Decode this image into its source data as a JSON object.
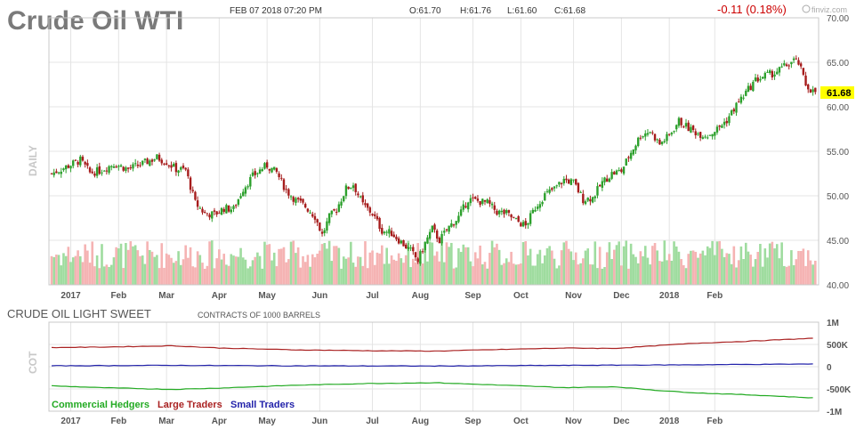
{
  "header": {
    "title": "Crude Oil WTI",
    "datetime": "FEB 07 2018 07:20 PM",
    "ohlc": {
      "open": "O:61.70",
      "high": "H:61.76",
      "low": "L:61.60",
      "close": "C:61.68"
    },
    "change": "-0.11 (0.18%)",
    "logo": "finviz.com",
    "last_price": "61.68"
  },
  "colors": {
    "up": "#2ca02c",
    "down": "#a61c1c",
    "vol_up": "#9fdc9f",
    "vol_down": "#f5b3b3",
    "change_text": "#cc0000",
    "price_tag_bg": "#ffff00",
    "commercial": "#22aa22",
    "large": "#aa2222",
    "small": "#2222aa",
    "grid": "#e4e4e4"
  },
  "chart_data": [
    {
      "type": "candlestick",
      "title": "Crude Oil WTI",
      "ylabel": "DAILY",
      "ylim": [
        40,
        70
      ],
      "yticks": [
        "70.00",
        "65.00",
        "60.00",
        "55.00",
        "50.00",
        "45.00",
        "40.00"
      ],
      "x_labels": [
        "2017",
        "Feb",
        "Mar",
        "Apr",
        "May",
        "Jun",
        "Jul",
        "Aug",
        "Sep",
        "Oct",
        "Nov",
        "Dec",
        "2018",
        "Feb"
      ],
      "grid": true,
      "anchors": [
        [
          0,
          52.5
        ],
        [
          8,
          53.5
        ],
        [
          12,
          54.0
        ],
        [
          16,
          52.6
        ],
        [
          20,
          52.8
        ],
        [
          26,
          53.6
        ],
        [
          32,
          53.0
        ],
        [
          38,
          53.6
        ],
        [
          44,
          54.3
        ],
        [
          48,
          53.8
        ],
        [
          52,
          53.0
        ],
        [
          56,
          52.9
        ],
        [
          60,
          49.2
        ],
        [
          64,
          48.0
        ],
        [
          68,
          47.9
        ],
        [
          72,
          48.6
        ],
        [
          76,
          48.5
        ],
        [
          80,
          50.8
        ],
        [
          84,
          52.2
        ],
        [
          88,
          53.1
        ],
        [
          90,
          53.4
        ],
        [
          94,
          52.6
        ],
        [
          98,
          50.6
        ],
        [
          102,
          49.5
        ],
        [
          106,
          48.8
        ],
        [
          110,
          47.7
        ],
        [
          113,
          45.6
        ],
        [
          116,
          47.6
        ],
        [
          119,
          48.5
        ],
        [
          123,
          50.8
        ],
        [
          126,
          51.3
        ],
        [
          130,
          49.0
        ],
        [
          134,
          48.0
        ],
        [
          138,
          46.1
        ],
        [
          142,
          45.8
        ],
        [
          146,
          44.8
        ],
        [
          150,
          43.8
        ],
        [
          153,
          42.7
        ],
        [
          156,
          44.7
        ],
        [
          159,
          46.3
        ],
        [
          162,
          45.0
        ],
        [
          166,
          46.5
        ],
        [
          170,
          47.6
        ],
        [
          174,
          49.6
        ],
        [
          178,
          49.4
        ],
        [
          182,
          49.2
        ],
        [
          186,
          48.2
        ],
        [
          190,
          48.0
        ],
        [
          194,
          47.2
        ],
        [
          198,
          46.6
        ],
        [
          202,
          48.7
        ],
        [
          206,
          50.1
        ],
        [
          210,
          50.8
        ],
        [
          214,
          51.8
        ],
        [
          218,
          51.5
        ],
        [
          222,
          49.6
        ],
        [
          226,
          49.8
        ],
        [
          230,
          51.5
        ],
        [
          234,
          52.5
        ],
        [
          238,
          52.8
        ],
        [
          242,
          54.9
        ],
        [
          246,
          56.8
        ],
        [
          250,
          57.3
        ],
        [
          254,
          55.8
        ],
        [
          258,
          56.8
        ],
        [
          262,
          58.4
        ],
        [
          266,
          57.6
        ],
        [
          270,
          57.0
        ],
        [
          274,
          56.8
        ],
        [
          278,
          57.5
        ],
        [
          282,
          58.5
        ],
        [
          286,
          60.2
        ],
        [
          290,
          61.6
        ],
        [
          294,
          63.0
        ],
        [
          298,
          63.5
        ],
        [
          302,
          63.8
        ],
        [
          306,
          64.5
        ],
        [
          310,
          65.2
        ],
        [
          312,
          64.9
        ],
        [
          315,
          62.5
        ],
        [
          318,
          61.7
        ]
      ],
      "last_value": 61.68
    },
    {
      "type": "line",
      "title": "CRUDE OIL LIGHT SWEET",
      "subtitle": "CONTRACTS OF 1000 BARRELS",
      "ylabel": "COT",
      "ylim": [
        -1000000,
        1000000
      ],
      "yticks": [
        "1M",
        "500K",
        "0",
        "-500K",
        "-1M"
      ],
      "x_labels": [
        "2017",
        "Feb",
        "Mar",
        "Apr",
        "May",
        "Jun",
        "Jul",
        "Aug",
        "Sep",
        "Oct",
        "Nov",
        "Dec",
        "2018",
        "Feb"
      ],
      "series": [
        {
          "name": "Commercial Hedgers",
          "color": "#22aa22",
          "points": [
            [
              0,
              -430000
            ],
            [
              20,
              -470000
            ],
            [
              50,
              -510000
            ],
            [
              70,
              -480000
            ],
            [
              100,
              -420000
            ],
            [
              130,
              -380000
            ],
            [
              160,
              -360000
            ],
            [
              190,
              -420000
            ],
            [
              215,
              -470000
            ],
            [
              235,
              -450000
            ],
            [
              255,
              -540000
            ],
            [
              270,
              -590000
            ],
            [
              290,
              -630000
            ],
            [
              310,
              -680000
            ],
            [
              318,
              -700000
            ]
          ]
        },
        {
          "name": "Large Traders",
          "color": "#aa2222",
          "points": [
            [
              0,
              430000
            ],
            [
              20,
              440000
            ],
            [
              50,
              470000
            ],
            [
              70,
              420000
            ],
            [
              100,
              380000
            ],
            [
              130,
              360000
            ],
            [
              160,
              350000
            ],
            [
              190,
              390000
            ],
            [
              215,
              420000
            ],
            [
              235,
              410000
            ],
            [
              255,
              480000
            ],
            [
              270,
              530000
            ],
            [
              290,
              570000
            ],
            [
              310,
              620000
            ],
            [
              318,
              640000
            ]
          ]
        },
        {
          "name": "Small Traders",
          "color": "#2222aa",
          "points": [
            [
              0,
              20000
            ],
            [
              50,
              30000
            ],
            [
              100,
              20000
            ],
            [
              160,
              15000
            ],
            [
              215,
              30000
            ],
            [
              260,
              40000
            ],
            [
              318,
              60000
            ]
          ]
        }
      ]
    }
  ]
}
